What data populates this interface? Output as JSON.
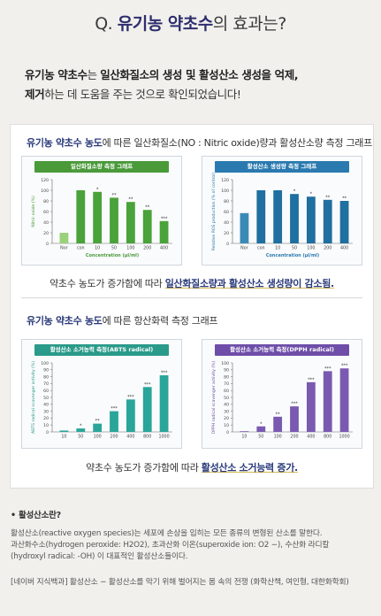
{
  "headline": {
    "prefix": "Q. ",
    "strong": "유기농 약초수",
    "suffix": "의 효과는?"
  },
  "intro": {
    "line1_bold": "유기농 약초수",
    "line1_mid": "는 ",
    "line1_bold2": "일산화질소의 생성 및 활성산소 생성을 억제,",
    "line2_bold": "제거",
    "line2_rest": "하는 데 도움을 주는 것으로 확인되었습니다!"
  },
  "section1": {
    "title_bold": "유기농 약초수 농도",
    "title_rest": "에 따른 일산화질소(NO : Nitric oxide)량과 활성산소량 측정 그래프",
    "caption_pre": "약초수 농도가 증가함에 따라 ",
    "caption_hl": "일산화질소량과 활성산소 생성량이 감소됨."
  },
  "section2": {
    "title_bold": "유기농 약초수 농도",
    "title_rest": "에 따른 항산화력 측정 그래프",
    "caption_pre": "약초수 농도가 증가함에 따라 ",
    "caption_hl": "활성산소 소거능력 증가."
  },
  "footer": {
    "question": "• 활성산소란?",
    "line1": "활성산소(reactive oxygen species)는 세포에 손상을 입히는 모든 종류의 변형된 산소를 말한다.",
    "line2": "과산화수소(hydrogen peroxide: H2O2), 초과산화 이온(superoxide ion: O2 −), 수산화 라디칼",
    "line3": "(hydroxyl radical: -OH) 이 대표적인 활성산소들이다.",
    "source": "[네이버 지식백과] 활성산소 − 활성산소를 막기 위해 벌어지는 몸 속의 전쟁 (화학산책, 여인형, 대한화학회)"
  },
  "chart_data": [
    {
      "type": "bar",
      "title": "일산화질소량 측정 그래프",
      "ylabel": "Nitric oxide (%)",
      "xlabel": "Concentration (μl/ml)",
      "categories": [
        "Nor",
        "con",
        "10",
        "50",
        "100",
        "200",
        "400"
      ],
      "values": [
        20,
        100,
        97,
        86,
        78,
        63,
        42
      ],
      "significance": [
        "",
        "",
        "*",
        "**",
        "**",
        "**",
        "***"
      ],
      "ylim": [
        0,
        120
      ],
      "yticks": [
        0,
        20,
        40,
        60,
        80,
        100,
        120
      ],
      "colors": [
        "#9ad07a",
        "#4aa23a"
      ],
      "header_color": "#4a9a3a"
    },
    {
      "type": "bar",
      "title": "활성산소 생성량 측정 그래프",
      "ylabel": "Relative ROS production (% of control)",
      "xlabel": "Concentration (μl/ml)",
      "categories": [
        "Nor",
        "con",
        "10",
        "50",
        "100",
        "200",
        "400"
      ],
      "values": [
        57,
        100,
        100,
        93,
        88,
        82,
        80
      ],
      "significance": [
        "",
        "",
        "",
        "*",
        "*",
        "**",
        "**"
      ],
      "ylim": [
        0,
        120
      ],
      "yticks": [
        0,
        20,
        40,
        60,
        80,
        100,
        120
      ],
      "colors": [
        "#3a8ab8",
        "#1f6fa0"
      ],
      "header_color": "#2a7ab0"
    },
    {
      "type": "bar",
      "title": "활성산소 소거능력 측정(ABTS radical)",
      "ylabel": "ABTS radical scavenger activity (%)",
      "xlabel": "",
      "categories": [
        "10",
        "50",
        "100",
        "200",
        "400",
        "800",
        "1000"
      ],
      "values": [
        2,
        5,
        12,
        30,
        47,
        65,
        82
      ],
      "significance": [
        "",
        "*",
        "**",
        "***",
        "***",
        "***",
        "***"
      ],
      "ylim": [
        0,
        100
      ],
      "yticks": [
        0,
        10,
        20,
        30,
        40,
        50,
        60,
        70,
        80,
        90,
        100
      ],
      "colors": [
        "#2aa59a",
        "#2aa59a"
      ],
      "header_color": "#2a9a8a"
    },
    {
      "type": "bar",
      "title": "활성산소 소거능력 측정(DPPH radical)",
      "ylabel": "DPPH radical scavenger activity (%)",
      "xlabel": "",
      "categories": [
        "10",
        "50",
        "100",
        "200",
        "400",
        "800",
        "1000"
      ],
      "values": [
        1,
        8,
        22,
        37,
        72,
        88,
        92
      ],
      "significance": [
        "",
        "*",
        "**",
        "***",
        "***",
        "***",
        "***"
      ],
      "ylim": [
        0,
        100
      ],
      "yticks": [
        0,
        10,
        20,
        30,
        40,
        50,
        60,
        70,
        80,
        90,
        100
      ],
      "colors": [
        "#7a5ab0",
        "#7a5ab0"
      ],
      "header_color": "#6e4ea8"
    }
  ]
}
